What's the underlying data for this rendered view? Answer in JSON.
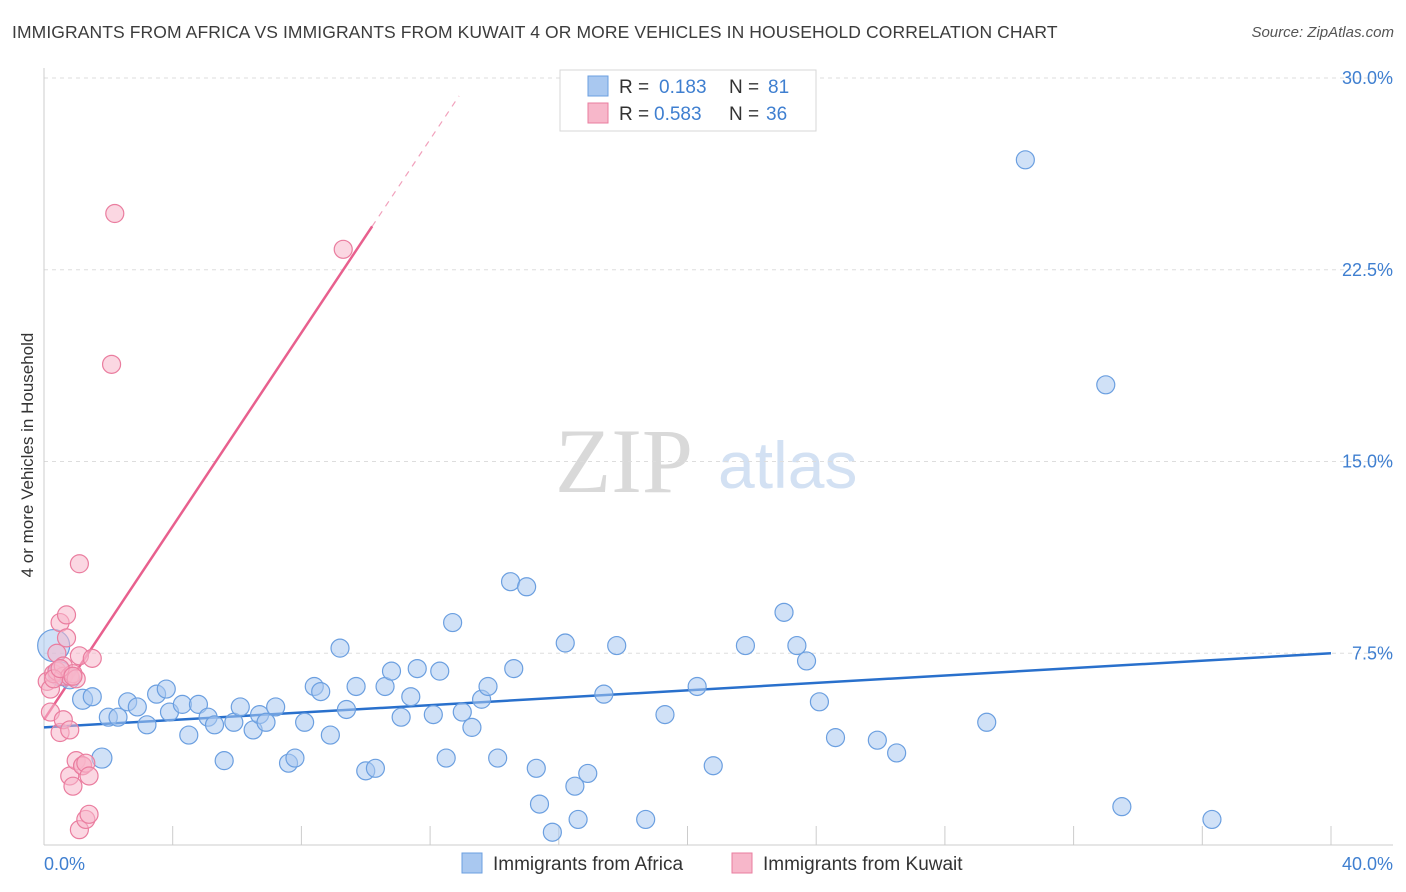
{
  "header": {
    "title": "IMMIGRANTS FROM AFRICA VS IMMIGRANTS FROM KUWAIT 4 OR MORE VEHICLES IN HOUSEHOLD CORRELATION CHART",
    "source": "Source: ZipAtlas.com"
  },
  "watermark": {
    "zip": "ZIP",
    "atlas": "atlas"
  },
  "colors": {
    "africa_fill": "#a9c8f0",
    "africa_stroke": "#6b9fe0",
    "africa_line": "#2970cc",
    "kuwait_fill": "#f7b7ca",
    "kuwait_stroke": "#ea7d9f",
    "kuwait_line": "#e8608e",
    "axis_text": "#3f7fd0",
    "grid": "#dddddd"
  },
  "legend_top": {
    "rows": [
      {
        "r_label": "R =",
        "r_value": "0.183",
        "n_label": "N =",
        "n_value": "81"
      },
      {
        "r_label": "R =",
        "r_value": "0.583",
        "n_label": "N =",
        "n_value": "36"
      }
    ]
  },
  "chart_data": {
    "type": "scatter",
    "title": "IMMIGRANTS FROM AFRICA VS IMMIGRANTS FROM KUWAIT 4 OR MORE VEHICLES IN HOUSEHOLD CORRELATION CHART",
    "xlabel": "",
    "ylabel": "4 or more Vehicles in Household",
    "xlim": [
      0,
      40
    ],
    "ylim": [
      0,
      30
    ],
    "x_tick_labels": [
      "0.0%",
      "40.0%"
    ],
    "y_ticks": [
      7.5,
      15.0,
      22.5,
      30.0
    ],
    "y_tick_labels": [
      "7.5%",
      "15.0%",
      "22.5%",
      "30.0%"
    ],
    "grid": true,
    "legend_placement": "bottom-center",
    "series": [
      {
        "name": "Immigrants from Africa",
        "r": 0.183,
        "n": 81,
        "trend": {
          "x": [
            0,
            40
          ],
          "y": [
            4.6,
            7.5
          ]
        },
        "points": [
          [
            0.3,
            7.8,
            16
          ],
          [
            0.5,
            6.7,
            12
          ],
          [
            0.8,
            6.5,
            10
          ],
          [
            1.2,
            5.7,
            10
          ],
          [
            1.5,
            5.8,
            9
          ],
          [
            1.8,
            3.4,
            10
          ],
          [
            2.0,
            5.0,
            9
          ],
          [
            2.3,
            5.0,
            9
          ],
          [
            2.6,
            5.6,
            9
          ],
          [
            2.9,
            5.4,
            9
          ],
          [
            3.2,
            4.7,
            9
          ],
          [
            3.5,
            5.9,
            9
          ],
          [
            3.8,
            6.1,
            9
          ],
          [
            3.9,
            5.2,
            9
          ],
          [
            4.3,
            5.5,
            9
          ],
          [
            4.5,
            4.3,
            9
          ],
          [
            4.8,
            5.5,
            9
          ],
          [
            5.1,
            5.0,
            9
          ],
          [
            5.3,
            4.7,
            9
          ],
          [
            5.6,
            3.3,
            9
          ],
          [
            5.9,
            4.8,
            9
          ],
          [
            6.1,
            5.4,
            9
          ],
          [
            6.5,
            4.5,
            9
          ],
          [
            6.7,
            5.1,
            9
          ],
          [
            6.9,
            4.8,
            9
          ],
          [
            7.2,
            5.4,
            9
          ],
          [
            7.6,
            3.2,
            9
          ],
          [
            7.8,
            3.4,
            9
          ],
          [
            8.1,
            4.8,
            9
          ],
          [
            8.4,
            6.2,
            9
          ],
          [
            8.6,
            6.0,
            9
          ],
          [
            8.9,
            4.3,
            9
          ],
          [
            9.2,
            7.7,
            9
          ],
          [
            9.4,
            5.3,
            9
          ],
          [
            9.7,
            6.2,
            9
          ],
          [
            10.0,
            2.9,
            9
          ],
          [
            10.3,
            3.0,
            9
          ],
          [
            10.6,
            6.2,
            9
          ],
          [
            10.8,
            6.8,
            9
          ],
          [
            11.1,
            5.0,
            9
          ],
          [
            11.4,
            5.8,
            9
          ],
          [
            11.6,
            6.9,
            9
          ],
          [
            12.1,
            5.1,
            9
          ],
          [
            12.3,
            6.8,
            9
          ],
          [
            12.5,
            3.4,
            9
          ],
          [
            12.7,
            8.7,
            9
          ],
          [
            13.0,
            5.2,
            9
          ],
          [
            13.3,
            4.6,
            9
          ],
          [
            13.6,
            5.7,
            9
          ],
          [
            13.8,
            6.2,
            9
          ],
          [
            14.1,
            3.4,
            9
          ],
          [
            14.5,
            10.3,
            9
          ],
          [
            14.6,
            6.9,
            9
          ],
          [
            15.0,
            10.1,
            9
          ],
          [
            15.3,
            3.0,
            9
          ],
          [
            15.4,
            1.6,
            9
          ],
          [
            15.8,
            0.5,
            9
          ],
          [
            16.2,
            7.9,
            9
          ],
          [
            16.5,
            2.3,
            9
          ],
          [
            16.9,
            2.8,
            9
          ],
          [
            16.6,
            1.0,
            9
          ],
          [
            17.4,
            5.9,
            9
          ],
          [
            17.8,
            7.8,
            9
          ],
          [
            18.7,
            1.0,
            9
          ],
          [
            19.3,
            5.1,
            9
          ],
          [
            20.3,
            6.2,
            9
          ],
          [
            20.8,
            3.1,
            9
          ],
          [
            21.8,
            7.8,
            9
          ],
          [
            23.0,
            9.1,
            9
          ],
          [
            23.4,
            7.8,
            9
          ],
          [
            23.7,
            7.2,
            9
          ],
          [
            24.1,
            5.6,
            9
          ],
          [
            24.6,
            4.2,
            9
          ],
          [
            25.9,
            4.1,
            9
          ],
          [
            26.5,
            3.6,
            9
          ],
          [
            29.3,
            4.8,
            9
          ],
          [
            30.5,
            26.8,
            9
          ],
          [
            33.0,
            18.0,
            9
          ],
          [
            33.5,
            1.5,
            9
          ],
          [
            36.3,
            1.0,
            9
          ]
        ]
      },
      {
        "name": "Immigrants from Kuwait",
        "r": 0.583,
        "n": 36,
        "trend": {
          "x": [
            0,
            10.2
          ],
          "y": [
            4.9,
            24.2
          ]
        },
        "trend_extension": {
          "x": [
            10.2,
            12.9
          ],
          "y": [
            24.2,
            29.3
          ]
        },
        "points": [
          [
            0.1,
            6.4,
            9
          ],
          [
            0.2,
            6.1,
            9
          ],
          [
            0.2,
            5.2,
            9
          ],
          [
            0.3,
            6.7,
            9
          ],
          [
            0.4,
            6.8,
            9
          ],
          [
            0.4,
            7.5,
            9
          ],
          [
            0.5,
            4.4,
            9
          ],
          [
            0.5,
            8.7,
            9
          ],
          [
            0.6,
            6.6,
            9
          ],
          [
            0.6,
            7.0,
            9
          ],
          [
            0.6,
            4.9,
            9
          ],
          [
            0.7,
            9.0,
            9
          ],
          [
            0.7,
            8.1,
            9
          ],
          [
            0.8,
            6.6,
            9
          ],
          [
            0.8,
            4.5,
            9
          ],
          [
            0.8,
            2.7,
            9
          ],
          [
            0.9,
            2.3,
            9
          ],
          [
            0.9,
            6.7,
            9
          ],
          [
            1.0,
            6.5,
            9
          ],
          [
            1.0,
            3.3,
            9
          ],
          [
            1.1,
            7.4,
            9
          ],
          [
            1.1,
            0.6,
            9
          ],
          [
            1.1,
            11.0,
            9
          ],
          [
            1.2,
            3.1,
            9
          ],
          [
            1.2,
            3.1,
            9
          ],
          [
            1.3,
            3.2,
            9
          ],
          [
            1.3,
            1.0,
            9
          ],
          [
            1.4,
            2.7,
            9
          ],
          [
            1.4,
            1.2,
            9
          ],
          [
            1.5,
            7.3,
            9
          ],
          [
            2.1,
            18.8,
            9
          ],
          [
            2.2,
            24.7,
            9
          ],
          [
            9.3,
            23.3,
            9
          ],
          [
            0.3,
            6.5,
            9
          ],
          [
            0.5,
            6.9,
            9
          ],
          [
            0.9,
            6.6,
            9
          ]
        ]
      }
    ]
  },
  "legend_bottom": {
    "items": [
      {
        "label": "Immigrants from Africa"
      },
      {
        "label": "Immigrants from Kuwait"
      }
    ]
  }
}
